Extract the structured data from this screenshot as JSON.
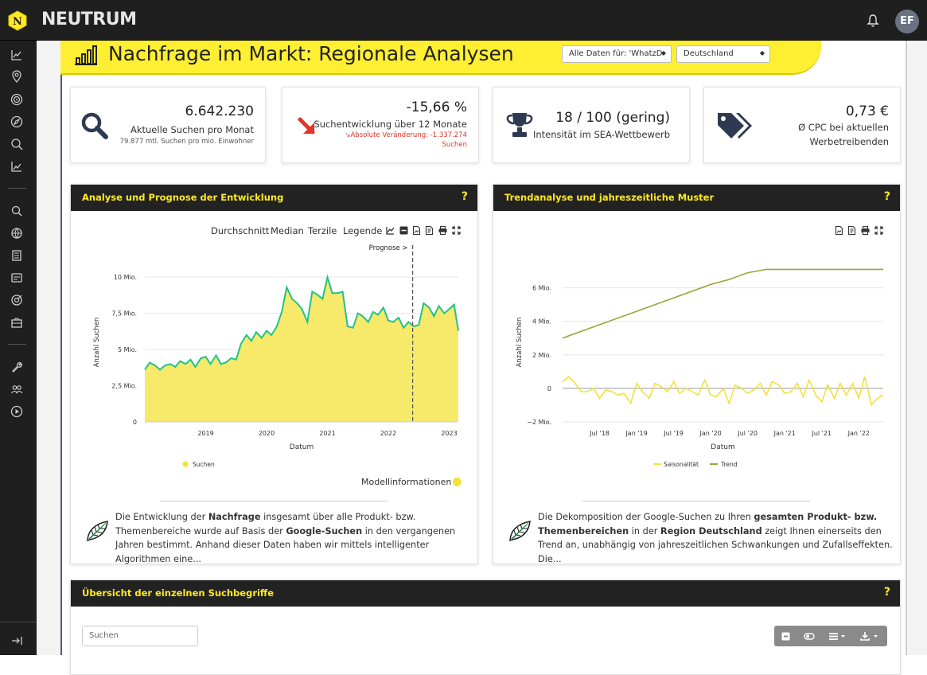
{
  "app": {
    "brand": "NEUTRUM",
    "user_initials": "EF"
  },
  "page": {
    "title": "Nachfrage im Markt: Regionale Analysen",
    "filter_data": "Alle Daten für: 'WhatzD",
    "filter_region": "Deutschland"
  },
  "kpis": [
    {
      "value": "6.642.230",
      "label": "Aktuelle Suchen pro Monat",
      "sub": "79.877 mtl. Suchen pro mio. Einwohner"
    },
    {
      "value": "-15,66 %",
      "label": "Suchentwicklung über 12 Monate",
      "sub1": "↘Absolute Veränderung: -1.337.274",
      "sub2": "Suchen"
    },
    {
      "value": "18 / 100 (gering)",
      "label": "Intensität im SEA-Wettbewerb"
    },
    {
      "value": "0,73 €",
      "label1": "Ø CPC bei aktuellen",
      "label2": "Werbetreibenden"
    }
  ],
  "panel_left": {
    "title": "Analyse und Prognose der Entwicklung",
    "help": "?",
    "toolbar": [
      "Durchschnitt",
      "Median",
      "Terzile",
      "Legende"
    ],
    "model_info": "Modellinformationen",
    "desc_html": "Die Entwicklung der <b>Nachfrage</b> insgesamt über alle Produkt- bzw. Themenbereiche wurde auf Basis der <b>Google-Suchen</b> in den vergangenen Jahren bestimmt. Anhand dieser Daten haben wir mittels intelligenter Algorithmen eine..."
  },
  "panel_right": {
    "title": "Trendanalyse und jahreszeitliche Muster",
    "help": "?",
    "desc_html": "Die Dekomposition der Google-Suchen zu Ihren <b>gesamten Produkt- bzw. Themenbereichen</b> in der <b>Region Deutschland</b> zeigt Ihnen einerseits den Trend an, unabhängig von jahreszeitlichen Schwankungen und Zufallseffekten. Die..."
  },
  "panel_bottom": {
    "title": "Übersicht der einzelnen Suchbegriffe",
    "help": "?",
    "search_placeholder": "Suchen"
  },
  "colors": {
    "accent": "#ffe924",
    "area_fill": "#f7e96a",
    "line": "#20c38a",
    "trend": "#9aa536",
    "season": "#f2e23a",
    "negative": "#e0352b"
  },
  "chart_data": [
    {
      "type": "area",
      "title": "",
      "xlabel": "Datum",
      "ylabel": "Anzahl Suchen",
      "y_ticks": [
        "0",
        "2,5 Mio.",
        "5 Mio.",
        "7,5 Mio.",
        "10 Mio."
      ],
      "x_ticks": [
        "2019",
        "2020",
        "2021",
        "2022",
        "2023"
      ],
      "annotation": "Prognose >",
      "forecast_start": 2022.4,
      "ylim": [
        0,
        11
      ],
      "xlim": [
        2018.0,
        2023.15
      ],
      "legend": "bottom",
      "series": [
        {
          "name": "Suchen",
          "x": [
            2018.0,
            2018.08,
            2018.17,
            2018.25,
            2018.33,
            2018.42,
            2018.5,
            2018.58,
            2018.67,
            2018.75,
            2018.83,
            2018.92,
            2019.0,
            2019.08,
            2019.17,
            2019.25,
            2019.33,
            2019.42,
            2019.5,
            2019.58,
            2019.67,
            2019.75,
            2019.83,
            2019.92,
            2020.0,
            2020.08,
            2020.17,
            2020.25,
            2020.33,
            2020.42,
            2020.5,
            2020.58,
            2020.67,
            2020.75,
            2020.83,
            2020.92,
            2021.0,
            2021.08,
            2021.17,
            2021.25,
            2021.33,
            2021.42,
            2021.5,
            2021.58,
            2021.67,
            2021.75,
            2021.83,
            2021.92,
            2022.0,
            2022.08,
            2022.17,
            2022.25,
            2022.33,
            2022.42,
            2022.5,
            2022.58,
            2022.67,
            2022.75,
            2022.83,
            2022.92,
            2023.0,
            2023.08,
            2023.15
          ],
          "values": [
            3.6,
            4.1,
            3.9,
            3.6,
            3.9,
            4.0,
            3.8,
            4.2,
            4.0,
            4.3,
            3.8,
            4.4,
            4.5,
            4.0,
            4.6,
            4.0,
            4.1,
            4.4,
            4.3,
            5.4,
            6.0,
            5.6,
            6.2,
            5.8,
            6.3,
            6.0,
            6.6,
            7.6,
            9.3,
            8.5,
            8.2,
            7.8,
            6.9,
            9.0,
            8.8,
            8.5,
            10.0,
            8.9,
            8.9,
            9.0,
            6.6,
            6.5,
            7.5,
            7.3,
            6.9,
            7.6,
            7.4,
            7.9,
            7.0,
            6.9,
            7.2,
            6.5,
            6.9,
            6.6,
            6.7,
            8.2,
            7.9,
            7.3,
            8.0,
            7.5,
            7.8,
            8.1,
            6.3
          ]
        }
      ]
    },
    {
      "type": "line",
      "title": "",
      "xlabel": "Datum",
      "ylabel": "Anzahl Suchen",
      "y_ticks": [
        "−2 Mio.",
        "0",
        "2 Mio.",
        "4 Mio.",
        "6 Mio."
      ],
      "x_ticks": [
        "Jul '18",
        "Jan '19",
        "Jul '19",
        "Jan '20",
        "Jul '20",
        "Jan '21",
        "Jul '21",
        "Jan '22"
      ],
      "ylim": [
        -2,
        7.5
      ],
      "legend": "bottom",
      "series": [
        {
          "name": "Saisonalität",
          "x": [
            2018.0,
            2018.08,
            2018.17,
            2018.25,
            2018.33,
            2018.42,
            2018.5,
            2018.58,
            2018.67,
            2018.75,
            2018.83,
            2018.92,
            2019.0,
            2019.08,
            2019.17,
            2019.25,
            2019.33,
            2019.42,
            2019.5,
            2019.58,
            2019.67,
            2019.75,
            2019.83,
            2019.92,
            2020.0,
            2020.08,
            2020.17,
            2020.25,
            2020.33,
            2020.42,
            2020.5,
            2020.58,
            2020.67,
            2020.75,
            2020.83,
            2020.92,
            2021.0,
            2021.08,
            2021.17,
            2021.25,
            2021.33,
            2021.42,
            2021.5,
            2021.58,
            2021.67,
            2021.75,
            2021.83,
            2021.92,
            2022.0,
            2022.08,
            2022.17,
            2022.25,
            2022.33
          ],
          "values": [
            0.4,
            0.7,
            0.3,
            -0.2,
            -0.2,
            0.0,
            -0.6,
            -0.1,
            -0.2,
            -0.4,
            -0.3,
            -0.9,
            0.3,
            -0.2,
            -0.6,
            0.3,
            0.1,
            -0.2,
            0.4,
            -0.3,
            0.0,
            -0.2,
            -0.4,
            0.5,
            -0.4,
            -0.5,
            0.0,
            -0.9,
            0.2,
            0.0,
            -0.3,
            -0.1,
            0.3,
            -0.4,
            0.4,
            0.2,
            -0.3,
            -0.2,
            0.3,
            -0.5,
            0.5,
            -0.4,
            -0.8,
            0.2,
            -0.6,
            0.3,
            -0.4,
            0.3,
            -0.6,
            0.7,
            -1.0,
            -0.6,
            -0.4
          ]
        },
        {
          "name": "Trend",
          "x": [
            2018.0,
            2018.5,
            2019.0,
            2019.5,
            2020.0,
            2020.25,
            2020.5,
            2020.75,
            2021.0,
            2021.5,
            2022.0,
            2022.33
          ],
          "values": [
            3.0,
            3.8,
            4.6,
            5.4,
            6.2,
            6.5,
            6.9,
            7.1,
            7.1,
            7.1,
            7.1,
            7.1
          ]
        }
      ]
    }
  ]
}
